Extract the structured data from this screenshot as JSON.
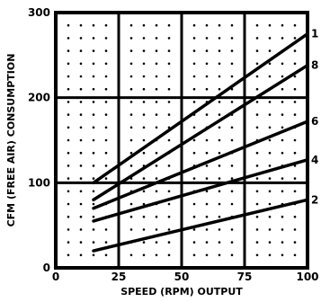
{
  "chart_data": {
    "type": "line",
    "xlabel": "SPEED (RPM) OUTPUT",
    "ylabel": "CFM (FREE AIR) CONSUMPTION",
    "xlim": [
      0,
      100
    ],
    "ylim": [
      0,
      300
    ],
    "x_ticks": [
      "0",
      "25",
      "50",
      "75",
      "100"
    ],
    "y_ticks": [
      "0",
      "100",
      "200",
      "300"
    ],
    "grid": true,
    "series": [
      {
        "name": "1",
        "x": [
          15,
          100
        ],
        "y": [
          100,
          275
        ]
      },
      {
        "name": "8",
        "x": [
          15,
          100
        ],
        "y": [
          80,
          238
        ]
      },
      {
        "name": "6",
        "x": [
          15,
          100
        ],
        "y": [
          70,
          172
        ]
      },
      {
        "name": "4",
        "x": [
          15,
          100
        ],
        "y": [
          55,
          127
        ]
      },
      {
        "name": "2",
        "x": [
          15,
          100
        ],
        "y": [
          20,
          80
        ]
      }
    ]
  }
}
